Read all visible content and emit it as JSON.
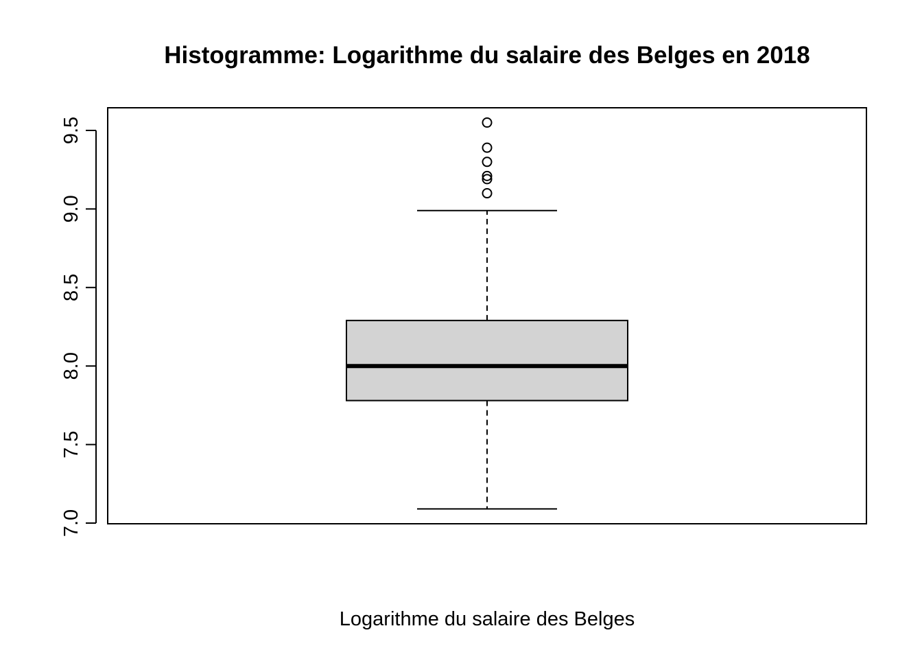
{
  "chart_data": {
    "type": "boxplot",
    "title": "Histogramme: Logarithme du salaire des Belges en 2018",
    "xlabel": "Logarithme du salaire des Belges",
    "ylabel": "",
    "ylim": [
      7.0,
      9.65
    ],
    "y_ticks": [
      "7.0",
      "7.5",
      "8.0",
      "8.5",
      "9.0",
      "9.5"
    ],
    "box": {
      "whisker_low": 7.09,
      "q1": 7.78,
      "median": 8.0,
      "q3": 8.29,
      "whisker_high": 8.99
    },
    "outliers": [
      9.1,
      9.19,
      9.21,
      9.3,
      9.39,
      9.55
    ],
    "box_fill": "#d3d3d3",
    "line_color": "#000000",
    "grid": false,
    "legend": "none"
  }
}
